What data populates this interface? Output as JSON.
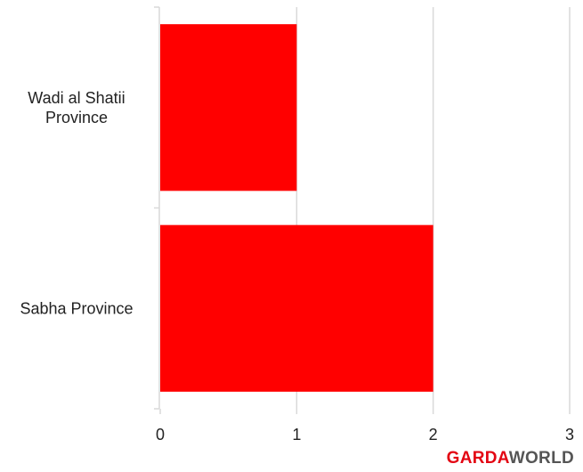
{
  "chart_data": {
    "type": "bar",
    "orientation": "horizontal",
    "categories": [
      "Wadi al Shatii Province",
      "Sabha Province"
    ],
    "category_lines": [
      [
        "Wadi al Shatii",
        "Province"
      ],
      [
        "Sabha Province"
      ]
    ],
    "values": [
      1,
      2
    ],
    "xlim": [
      0,
      3
    ],
    "xticks": [
      "0",
      "1",
      "2",
      "3"
    ],
    "grid": true,
    "bar_color": "#ff0000",
    "title": "",
    "xlabel": "",
    "ylabel": ""
  },
  "brand": {
    "part_a": "GARDA",
    "part_b": "WORLD",
    "color_a": "#e30613",
    "color_b": "#555555"
  }
}
